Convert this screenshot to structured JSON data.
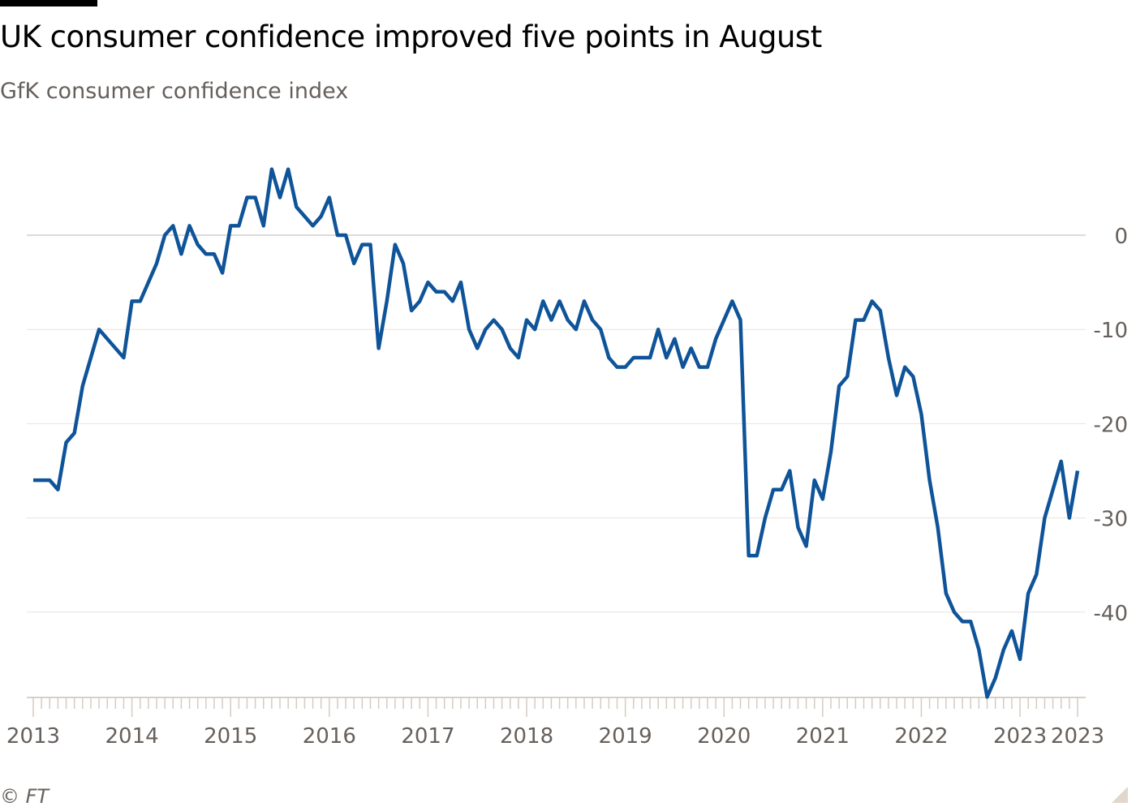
{
  "title": "UK consumer confidence improved five points in August",
  "subtitle": "GfK consumer confidence index",
  "source": "© FT",
  "chart_data": {
    "type": "line",
    "title": "UK consumer confidence improved five points in August",
    "subtitle": "GfK consumer confidence index",
    "xlabel": "",
    "ylabel": "",
    "x_start": "2013-01",
    "x_end": "2023-08",
    "frequency": "monthly",
    "ylim": [
      -49,
      0
    ],
    "yticks": [
      0,
      -10,
      -20,
      -30,
      -40
    ],
    "ytick_labels": [
      "0",
      "-10",
      "-20",
      "-30",
      "-40"
    ],
    "xtick_labels": [
      "2013",
      "2014",
      "2015",
      "2016",
      "2017",
      "2018",
      "2019",
      "2020",
      "2021",
      "2022",
      "2023",
      "2023"
    ],
    "xtick_month_index": [
      0,
      12,
      24,
      36,
      48,
      60,
      72,
      84,
      96,
      108,
      120,
      127
    ],
    "grid": true,
    "color": "#0f5499",
    "series": [
      {
        "name": "GfK consumer confidence index",
        "values": [
          -26,
          -26,
          -26,
          -27,
          -22,
          -21,
          -16,
          -13,
          -10,
          -11,
          -12,
          -13,
          -7,
          -7,
          -5,
          -3,
          0,
          1,
          -2,
          1,
          -1,
          -2,
          -2,
          -4,
          1,
          1,
          4,
          4,
          1,
          7,
          4,
          7,
          3,
          2,
          1,
          2,
          4,
          0,
          0,
          -3,
          -1,
          -1,
          -12,
          -7,
          -1,
          -3,
          -8,
          -7,
          -5,
          -6,
          -6,
          -7,
          -5,
          -10,
          -12,
          -10,
          -9,
          -10,
          -12,
          -13,
          -9,
          -10,
          -7,
          -9,
          -7,
          -9,
          -10,
          -7,
          -9,
          -10,
          -13,
          -14,
          -14,
          -13,
          -13,
          -13,
          -10,
          -13,
          -11,
          -14,
          -12,
          -14,
          -14,
          -11,
          -9,
          -7,
          -9,
          -34,
          -34,
          -30,
          -27,
          -27,
          -25,
          -31,
          -33,
          -26,
          -28,
          -23,
          -16,
          -15,
          -9,
          -9,
          -7,
          -8,
          -13,
          -17,
          -14,
          -15,
          -19,
          -26,
          -31,
          -38,
          -40,
          -41,
          -41,
          -44,
          -49,
          -47,
          -44,
          -42,
          -45,
          -38,
          -36,
          -30,
          -27,
          -24,
          -30,
          -25
        ]
      }
    ]
  }
}
